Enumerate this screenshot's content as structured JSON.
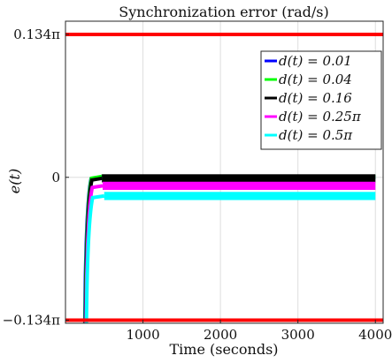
{
  "chart_data": {
    "type": "line",
    "title": "Synchronization error (rad/s)",
    "xlabel": "Time (seconds)",
    "ylabel": "e(t)",
    "xlim": [
      0,
      4100
    ],
    "ylim": [
      -0.43,
      0.46
    ],
    "x_ticks": [
      1000,
      2000,
      3000,
      4000
    ],
    "x_tick_labels": [
      "1000",
      "2000",
      "3000",
      "4000"
    ],
    "y_ticks": [
      -0.42097,
      0,
      0.42097
    ],
    "y_tick_labels": [
      "−0.134π",
      "0",
      "0.134π"
    ],
    "grid": true,
    "legend_position": "top-right",
    "bounds": {
      "values": [
        0.42097,
        -0.42097
      ],
      "color": "#ff0000"
    },
    "series": [
      {
        "name": "d(t) = 0.01",
        "color": "#0000ff",
        "start": [
          250,
          -0.45
        ],
        "rise_end": 450,
        "steady": 0.0,
        "band": 0.006
      },
      {
        "name": "d(t) = 0.04",
        "color": "#00ff00",
        "start": [
          255,
          -0.45
        ],
        "rise_end": 460,
        "steady": 0.002,
        "band": 0.006
      },
      {
        "name": "d(t) = 0.16",
        "color": "#000000",
        "start": [
          260,
          -0.45
        ],
        "rise_end": 470,
        "steady": -0.003,
        "band": 0.012
      },
      {
        "name": "d(t) = 0.25π",
        "color": "#ff00ff",
        "start": [
          265,
          -0.45
        ],
        "rise_end": 480,
        "steady": -0.025,
        "band": 0.012
      },
      {
        "name": "d(t) = 0.5π",
        "color": "#00ffff",
        "start": [
          270,
          -0.45
        ],
        "rise_end": 500,
        "steady": -0.055,
        "band": 0.012
      }
    ]
  }
}
